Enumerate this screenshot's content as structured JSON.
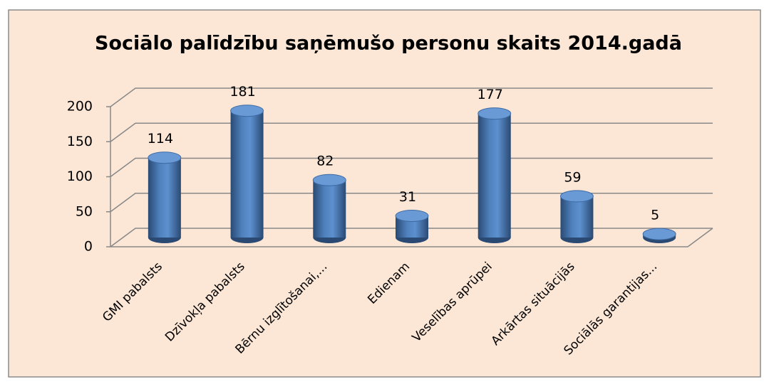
{
  "chart_data": {
    "type": "bar",
    "title": "Sociālo palīdzību saņēmušo personu skaits 2014.gadā",
    "categories": [
      "GMI pabalsts",
      "Dzīvokļa pabalsts",
      "Bērnu izglītošanai,...",
      "Edienam",
      "Veselības aprūpei",
      "Arkārtas situācijās",
      "Sociālās garantijas..."
    ],
    "values": [
      114,
      181,
      82,
      31,
      177,
      59,
      5
    ],
    "color": "#4f81bd",
    "ylim": [
      0,
      200
    ],
    "yticks": [
      0,
      50,
      100,
      150,
      200
    ],
    "grid": true
  }
}
